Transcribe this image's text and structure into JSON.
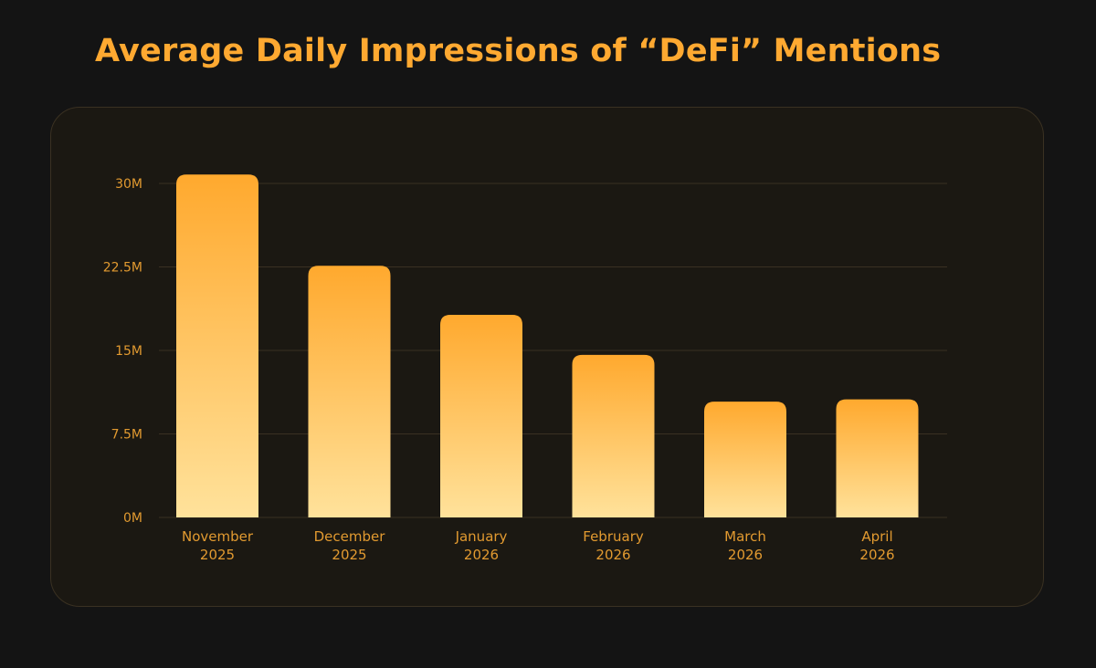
{
  "colors": {
    "background": "#141414",
    "card": "#1B1812",
    "card_border": "#3A3122",
    "accent": "#FFA931",
    "label": "#E29A30",
    "grid": "#3A3122",
    "bar_top": "#FFA92E",
    "bar_bottom": "#FFE29B"
  },
  "chart_data": {
    "type": "bar",
    "title": "Average Daily Impressions of “DeFi” Mentions",
    "xlabel": "",
    "ylabel": "",
    "categories": [
      [
        "November",
        "2025"
      ],
      [
        "December",
        "2025"
      ],
      [
        "January",
        "2026"
      ],
      [
        "February",
        "2026"
      ],
      [
        "March",
        "2026"
      ],
      [
        "April",
        "2026"
      ]
    ],
    "values": [
      30.8,
      22.6,
      18.2,
      14.6,
      10.4,
      10.6
    ],
    "unit": "M",
    "ylim": [
      0,
      30
    ],
    "yticks": [
      {
        "value": 0,
        "label": "0M"
      },
      {
        "value": 7.5,
        "label": "7.5M"
      },
      {
        "value": 15,
        "label": "15M"
      },
      {
        "value": 22.5,
        "label": "22.5M"
      },
      {
        "value": 30,
        "label": "30M"
      }
    ],
    "grid": true,
    "legend": "none"
  }
}
